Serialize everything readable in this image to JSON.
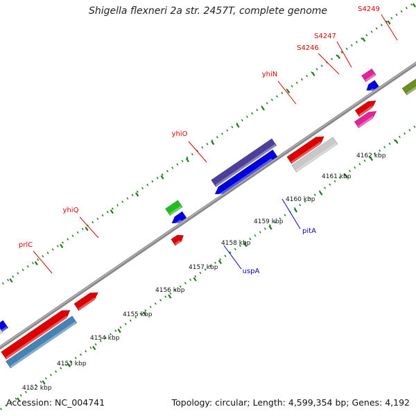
{
  "title": "Shigella flexneri 2a str. 2457T, complete genome",
  "footer": {
    "accession": "Accession: NC_004741",
    "summary": "Topology: circular; Length: 4,599,354 bp; Genes: 4,192"
  },
  "colors": {
    "backbone": "#888888",
    "tick": "#1a7a1a",
    "forward_label": "#dd0000",
    "reverse_label": "#0000cc"
  },
  "scale_labels": [
    "4152 kbp",
    "4153 kbp",
    "4154 kbp",
    "4155 kbp",
    "4156 kbp",
    "4157 kbp",
    "4158 kbp",
    "4159 kbp",
    "4160 kbp",
    "4161 kbp",
    "4162 kbp"
  ],
  "forward_genes": [
    {
      "name": "prlC",
      "color": "#dd0000",
      "labeled": true
    },
    {
      "name": "yhiQ",
      "color": "#dd0000",
      "labeled": true
    },
    {
      "name": "yhiO",
      "color": "#dd0000",
      "labeled": true
    },
    {
      "name": "yhiN",
      "color": "#dd0000",
      "labeled": true
    },
    {
      "name": "S4246",
      "color": "#dd0000",
      "labeled": true
    },
    {
      "name": "S4247",
      "color": "#e0239a",
      "labeled": true
    },
    {
      "name": "S4249",
      "color": "#6a8e23",
      "labeled": true
    }
  ],
  "reverse_genes": [
    {
      "name": "uspA",
      "color": "#22bb22",
      "labeled": true
    },
    {
      "name": "pitA",
      "color": "#4b3f9a",
      "labeled": true
    }
  ]
}
